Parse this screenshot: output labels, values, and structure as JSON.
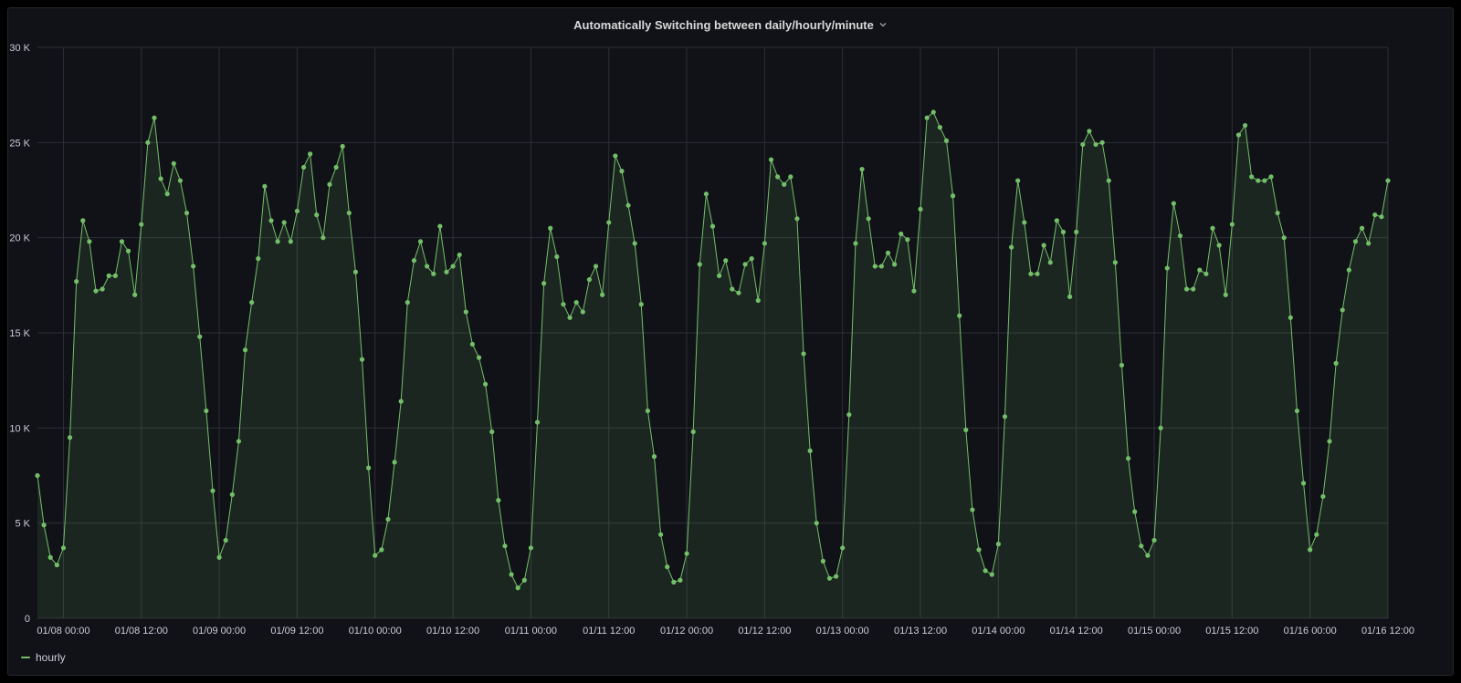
{
  "panel": {
    "title": "Automatically Switching between daily/hourly/minute"
  },
  "colors": {
    "series": "#73bf69",
    "background": "#111217",
    "grid": "#2c2f36",
    "text": "#ccccdc"
  },
  "chart_data": {
    "type": "area",
    "title": "Automatically Switching between daily/hourly/minute",
    "x_start": "01/08 00:00",
    "x_end": "01/16 12:00",
    "x_interval": "1h",
    "x_tick_labels": [
      "01/08 00:00",
      "01/08 12:00",
      "01/09 00:00",
      "01/09 12:00",
      "01/10 00:00",
      "01/10 12:00",
      "01/11 00:00",
      "01/11 12:00",
      "01/12 00:00",
      "01/12 12:00",
      "01/13 00:00",
      "01/13 12:00",
      "01/14 00:00",
      "01/14 12:00",
      "01/15 00:00",
      "01/15 12:00",
      "01/16 00:00",
      "01/16 12:00"
    ],
    "y_tick_labels": [
      "0",
      "5 K",
      "10 K",
      "15 K",
      "20 K",
      "25 K",
      "30 K"
    ],
    "ylim": [
      0,
      30000
    ],
    "grid": true,
    "legend_position": "bottom-left",
    "series": [
      {
        "name": "hourly",
        "values": [
          7500,
          4900,
          3200,
          2800,
          3700,
          9500,
          17700,
          20900,
          19800,
          17200,
          17300,
          18000,
          18000,
          19800,
          19300,
          17000,
          20700,
          25000,
          26300,
          23100,
          22300,
          23900,
          23000,
          21300,
          18500,
          14800,
          10900,
          6700,
          3200,
          4100,
          6500,
          9300,
          14100,
          16600,
          18900,
          22700,
          20900,
          19800,
          20800,
          19800,
          21400,
          23700,
          24400,
          21200,
          20000,
          22800,
          23700,
          24800,
          21300,
          18200,
          13600,
          7900,
          3300,
          3600,
          5200,
          8200,
          11400,
          16600,
          18800,
          19800,
          18500,
          18100,
          20600,
          18200,
          18500,
          19100,
          16100,
          14400,
          13700,
          12300,
          9800,
          6200,
          3800,
          2300,
          1600,
          2000,
          3700,
          10300,
          17600,
          20500,
          19000,
          16500,
          15800,
          16600,
          16100,
          17800,
          18500,
          17000,
          20800,
          24300,
          23500,
          21700,
          19700,
          16500,
          10900,
          8500,
          4400,
          2700,
          1900,
          2000,
          3400,
          9800,
          18600,
          22300,
          20600,
          18000,
          18800,
          17300,
          17100,
          18600,
          18900,
          16700,
          19700,
          24100,
          23200,
          22800,
          23200,
          21000,
          13900,
          8800,
          5000,
          3000,
          2100,
          2200,
          3700,
          10700,
          19700,
          23600,
          21000,
          18500,
          18500,
          19200,
          18600,
          20200,
          19900,
          17200,
          21500,
          26300,
          26600,
          25800,
          25100,
          22200,
          15900,
          9900,
          5700,
          3600,
          2500,
          2300,
          3900,
          10600,
          19500,
          23000,
          20800,
          18100,
          18100,
          19600,
          18700,
          20900,
          20300,
          16900,
          20300,
          24900,
          25600,
          24900,
          25000,
          23000,
          18700,
          13300,
          8400,
          5600,
          3800,
          3300,
          4100,
          10000,
          18400,
          21800,
          20100,
          17300,
          17300,
          18300,
          18100,
          20500,
          19600,
          17000,
          20700,
          25400,
          25900,
          23200,
          23000,
          23000,
          23200,
          21300,
          20000,
          15800,
          10900,
          7100,
          3600,
          4400,
          6400,
          9300,
          13400,
          16200,
          18300,
          19800,
          20500,
          19700,
          21200,
          21100,
          23000
        ]
      }
    ]
  }
}
